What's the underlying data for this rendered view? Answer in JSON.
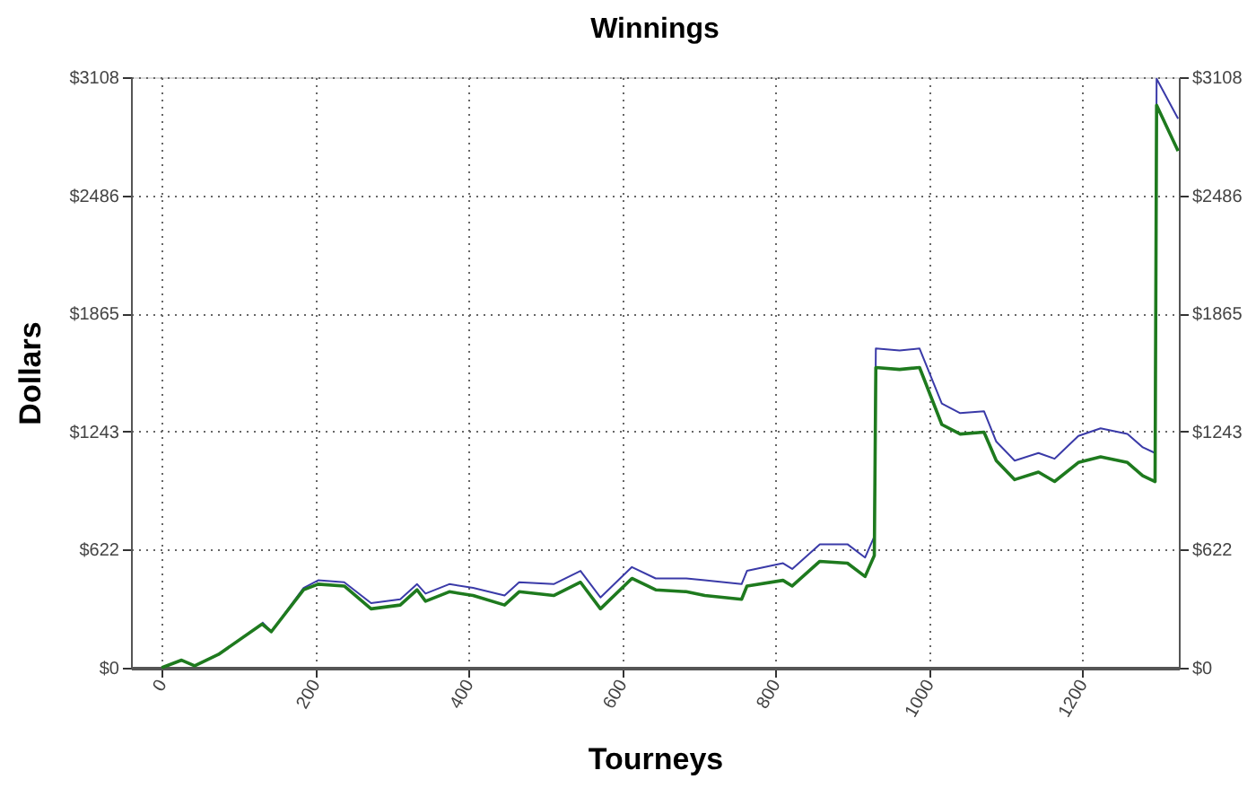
{
  "chart_data": {
    "type": "line",
    "title": "Winnings",
    "xlabel": "Tourneys",
    "ylabel": "Dollars",
    "x": [
      0,
      26,
      43,
      74,
      131,
      143,
      185,
      204,
      238,
      273,
      311,
      333,
      344,
      375,
      406,
      447,
      466,
      511,
      546,
      572,
      613,
      644,
      684,
      708,
      756,
      763,
      810,
      822,
      858,
      894,
      917,
      929,
      931,
      962,
      988,
      1017,
      1041,
      1072,
      1088,
      1112,
      1143,
      1164,
      1195,
      1224,
      1259,
      1279,
      1295,
      1297,
      1325
    ],
    "series": [
      {
        "color": "#3a3aa8",
        "values": [
          null,
          null,
          null,
          null,
          240,
          190,
          420,
          460,
          450,
          340,
          360,
          440,
          390,
          440,
          420,
          380,
          450,
          440,
          510,
          370,
          530,
          470,
          470,
          460,
          440,
          510,
          550,
          520,
          650,
          650,
          580,
          690,
          1680,
          1670,
          1680,
          1390,
          1340,
          1350,
          1190,
          1090,
          1130,
          1100,
          1220,
          1260,
          1230,
          1160,
          1130,
          3100,
          2890
        ]
      },
      {
        "color": "#1e7a1e",
        "values": [
          0,
          40,
          10,
          70,
          230,
          190,
          410,
          440,
          430,
          310,
          330,
          410,
          350,
          400,
          380,
          330,
          400,
          380,
          450,
          310,
          470,
          410,
          400,
          380,
          360,
          430,
          460,
          430,
          560,
          550,
          480,
          590,
          1580,
          1570,
          1580,
          1280,
          1230,
          1240,
          1090,
          990,
          1030,
          980,
          1080,
          1110,
          1080,
          1010,
          980,
          2960,
          2720
        ]
      }
    ],
    "xlim": [
      -40,
      1326
    ],
    "xticks": [
      0,
      200,
      400,
      600,
      800,
      1000,
      1200
    ],
    "ylim": [
      0,
      3108
    ],
    "yticks": [
      {
        "value": 0,
        "label": "$0"
      },
      {
        "value": 621.6,
        "label": "$622"
      },
      {
        "value": 1243.2,
        "label": "$1243"
      },
      {
        "value": 1864.8,
        "label": "$1865"
      },
      {
        "value": 2486.4,
        "label": "$2486"
      },
      {
        "value": 3108,
        "label": "$3108"
      }
    ],
    "y2lim": [
      0,
      3108
    ],
    "y2ticks": [
      {
        "value": 0,
        "label": "$0"
      },
      {
        "value": 621.6,
        "label": "$622"
      },
      {
        "value": 1243.2,
        "label": "$1243"
      },
      {
        "value": 1864.8,
        "label": "$1865"
      },
      {
        "value": 2486.4,
        "label": "$2486"
      },
      {
        "value": 3108,
        "label": "$3108"
      }
    ],
    "grid": true
  }
}
